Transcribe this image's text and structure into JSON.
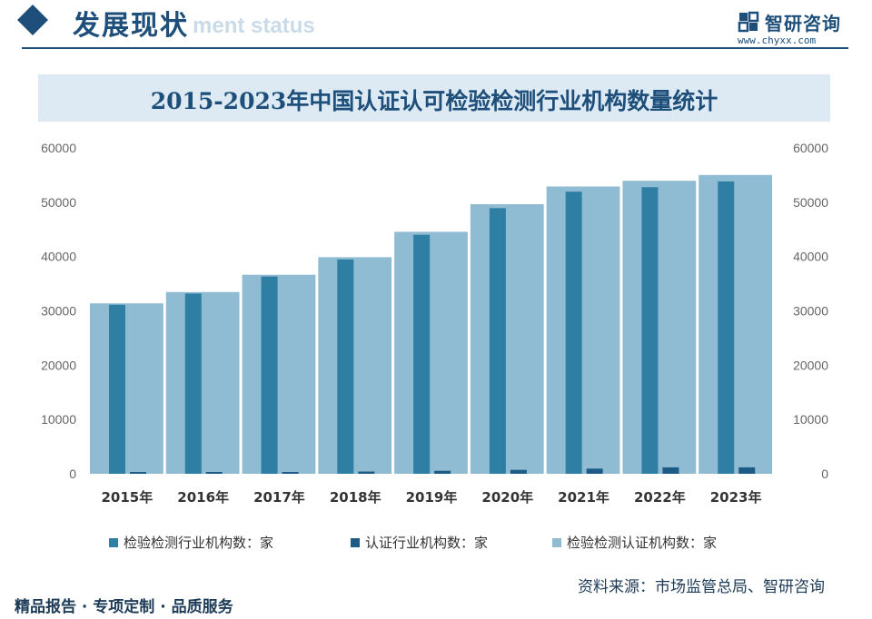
{
  "header": {
    "section_title": "发展现状",
    "section_subtitle": "ment status"
  },
  "brand": {
    "name": "智研咨询",
    "url": "www.chyxx.com"
  },
  "chart_data": {
    "type": "bar",
    "title": "2015-2023年中国认证认可检验检测行业机构数量统计",
    "categories": [
      "2015年",
      "2016年",
      "2017年",
      "2018年",
      "2019年",
      "2020年",
      "2021年",
      "2022年",
      "2023年"
    ],
    "series": [
      {
        "name": "检验检测行业机构数：家",
        "values": [
          31122,
          33189,
          36327,
          39472,
          44007,
          48919,
          51949,
          52769,
          53834
        ]
      },
      {
        "name": "认证行业机构数：家",
        "values": [
          258,
          276,
          320,
          414,
          552,
          724,
          950,
          1184,
          1186
        ]
      },
      {
        "name": "检验检测认证机构数：家",
        "values": [
          31380,
          33465,
          36647,
          39886,
          44559,
          49643,
          52899,
          53953,
          55020
        ]
      }
    ],
    "ylim": [
      0,
      60000
    ],
    "yticks": [
      0,
      10000,
      20000,
      30000,
      40000,
      50000,
      60000
    ],
    "colors": [
      "#2f7ea4",
      "#1c5b86",
      "#8fbcd2"
    ],
    "legend_position": "bottom"
  },
  "footer": {
    "left": "精品报告 · 专项定制 · 品质服务",
    "source": "资料来源：市场监管总局、智研咨询"
  }
}
